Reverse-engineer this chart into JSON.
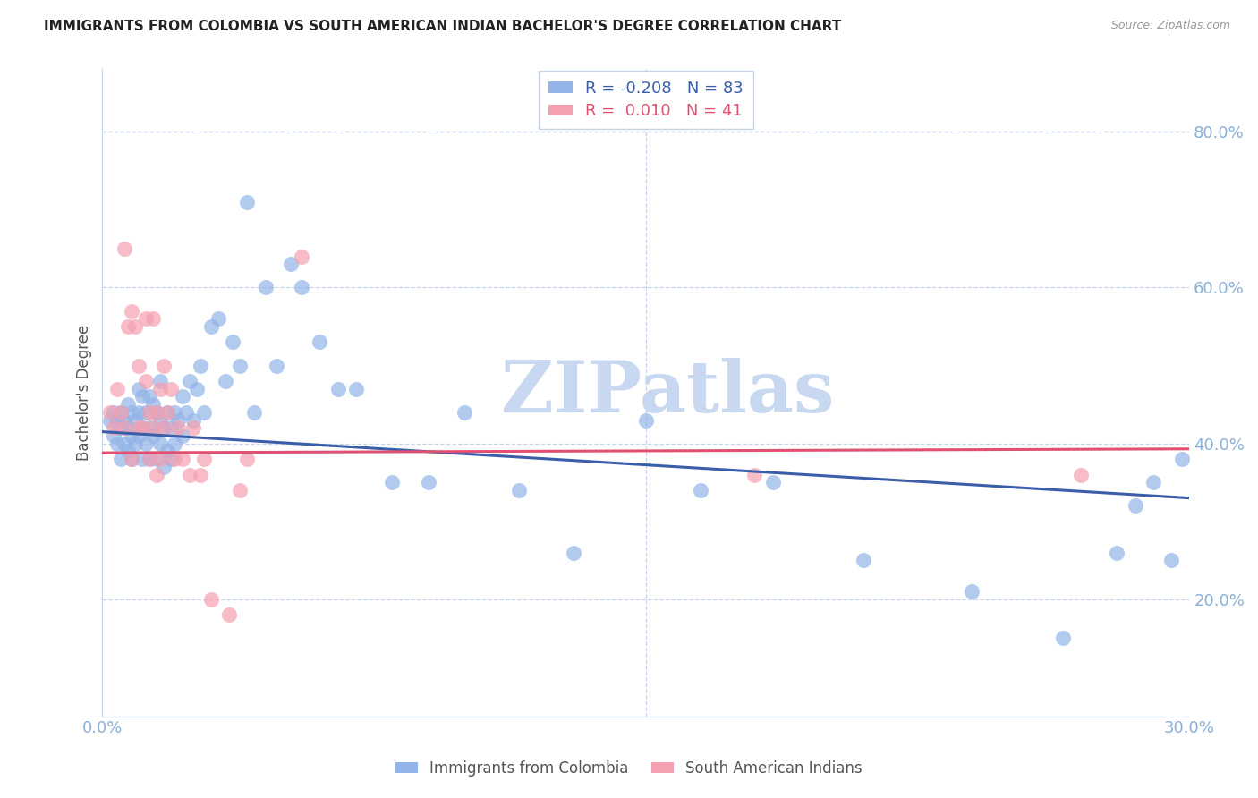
{
  "title": "IMMIGRANTS FROM COLOMBIA VS SOUTH AMERICAN INDIAN BACHELOR'S DEGREE CORRELATION CHART",
  "source": "Source: ZipAtlas.com",
  "ylabel": "Bachelor's Degree",
  "xlim": [
    0.0,
    0.3
  ],
  "ylim": [
    0.05,
    0.88
  ],
  "yticks": [
    0.2,
    0.4,
    0.6,
    0.8
  ],
  "ytick_labels": [
    "20.0%",
    "40.0%",
    "60.0%",
    "80.0%"
  ],
  "xticks": [
    0.0,
    0.05,
    0.1,
    0.15,
    0.2,
    0.25,
    0.3
  ],
  "xtick_labels": [
    "0.0%",
    "",
    "",
    "",
    "",
    "",
    "30.0%"
  ],
  "blue_R": -0.208,
  "blue_N": 83,
  "pink_R": 0.01,
  "pink_N": 41,
  "blue_color": "#92b4e8",
  "pink_color": "#f4a0b0",
  "blue_line_color": "#3a5fa8",
  "pink_line_color": "#e05070",
  "axis_color": "#8ab0d8",
  "grid_color": "#c8d4e8",
  "watermark": "ZIPatlas",
  "watermark_color": "#c8d8f0",
  "legend_label_blue": "Immigrants from Colombia",
  "legend_label_pink": "South American Indians",
  "blue_x": [
    0.002,
    0.003,
    0.003,
    0.004,
    0.004,
    0.005,
    0.005,
    0.005,
    0.006,
    0.006,
    0.007,
    0.007,
    0.007,
    0.008,
    0.008,
    0.008,
    0.009,
    0.009,
    0.01,
    0.01,
    0.01,
    0.011,
    0.011,
    0.011,
    0.012,
    0.012,
    0.013,
    0.013,
    0.013,
    0.014,
    0.014,
    0.015,
    0.015,
    0.016,
    0.016,
    0.016,
    0.017,
    0.017,
    0.018,
    0.018,
    0.019,
    0.019,
    0.02,
    0.02,
    0.021,
    0.022,
    0.022,
    0.023,
    0.024,
    0.025,
    0.026,
    0.027,
    0.028,
    0.03,
    0.032,
    0.034,
    0.036,
    0.038,
    0.04,
    0.042,
    0.045,
    0.048,
    0.052,
    0.055,
    0.06,
    0.065,
    0.07,
    0.08,
    0.09,
    0.1,
    0.115,
    0.13,
    0.15,
    0.165,
    0.185,
    0.21,
    0.24,
    0.265,
    0.28,
    0.285,
    0.29,
    0.295,
    0.298
  ],
  "blue_y": [
    0.43,
    0.41,
    0.44,
    0.4,
    0.43,
    0.42,
    0.44,
    0.38,
    0.4,
    0.43,
    0.39,
    0.42,
    0.45,
    0.38,
    0.41,
    0.44,
    0.4,
    0.43,
    0.41,
    0.44,
    0.47,
    0.38,
    0.42,
    0.46,
    0.4,
    0.44,
    0.38,
    0.42,
    0.46,
    0.41,
    0.45,
    0.38,
    0.44,
    0.4,
    0.43,
    0.48,
    0.37,
    0.42,
    0.39,
    0.44,
    0.38,
    0.42,
    0.4,
    0.44,
    0.43,
    0.41,
    0.46,
    0.44,
    0.48,
    0.43,
    0.47,
    0.5,
    0.44,
    0.55,
    0.56,
    0.48,
    0.53,
    0.5,
    0.71,
    0.44,
    0.6,
    0.5,
    0.63,
    0.6,
    0.53,
    0.47,
    0.47,
    0.35,
    0.35,
    0.44,
    0.34,
    0.26,
    0.43,
    0.34,
    0.35,
    0.25,
    0.21,
    0.15,
    0.26,
    0.32,
    0.35,
    0.25,
    0.38
  ],
  "pink_x": [
    0.002,
    0.003,
    0.004,
    0.005,
    0.006,
    0.006,
    0.007,
    0.008,
    0.008,
    0.009,
    0.01,
    0.01,
    0.011,
    0.012,
    0.012,
    0.013,
    0.013,
    0.014,
    0.014,
    0.015,
    0.015,
    0.016,
    0.016,
    0.017,
    0.017,
    0.018,
    0.019,
    0.02,
    0.021,
    0.022,
    0.024,
    0.025,
    0.027,
    0.028,
    0.03,
    0.035,
    0.038,
    0.04,
    0.055,
    0.18,
    0.27
  ],
  "pink_y": [
    0.44,
    0.42,
    0.47,
    0.44,
    0.42,
    0.65,
    0.55,
    0.38,
    0.57,
    0.55,
    0.42,
    0.5,
    0.42,
    0.56,
    0.48,
    0.44,
    0.38,
    0.42,
    0.56,
    0.36,
    0.44,
    0.38,
    0.47,
    0.42,
    0.5,
    0.44,
    0.47,
    0.38,
    0.42,
    0.38,
    0.36,
    0.42,
    0.36,
    0.38,
    0.2,
    0.18,
    0.34,
    0.38,
    0.64,
    0.36,
    0.36
  ],
  "blue_trend_x0": 0.0,
  "blue_trend_y0": 0.415,
  "blue_trend_x1": 0.3,
  "blue_trend_y1": 0.33,
  "pink_trend_x0": 0.0,
  "pink_trend_y0": 0.388,
  "pink_trend_x1": 0.3,
  "pink_trend_y1": 0.393
}
